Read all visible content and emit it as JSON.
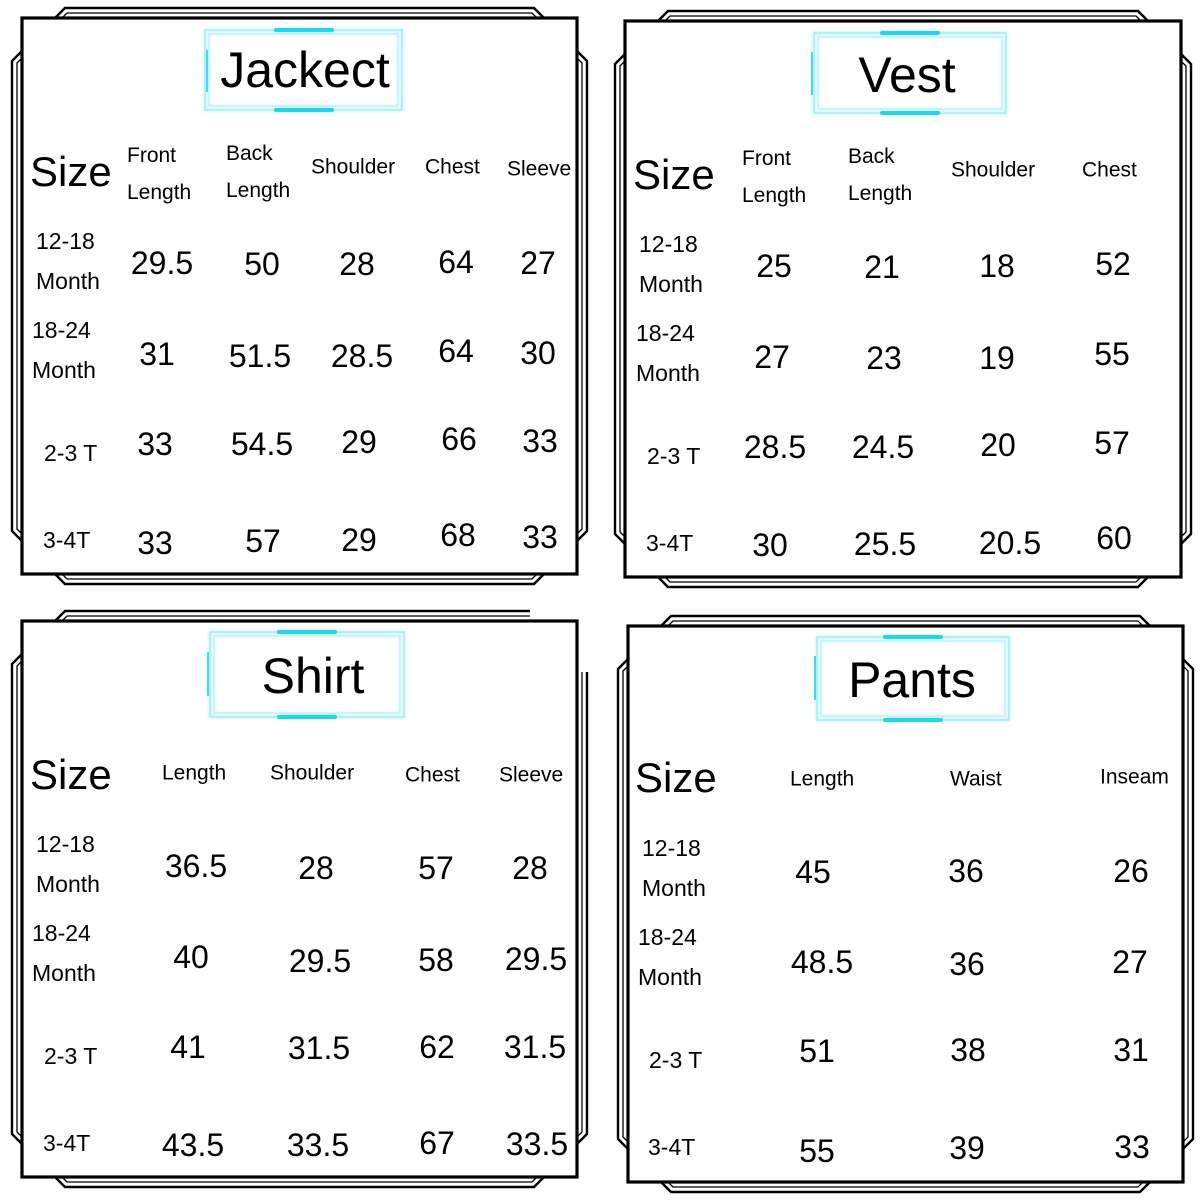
{
  "panels": [
    {
      "title": "Jackect",
      "size_label": "Size",
      "headers": [
        "Front\nLength",
        "Back\nLength",
        "Shoulder",
        "Chest",
        "Sleeve"
      ],
      "rows": [
        {
          "size": "12-18\nMonth",
          "values": [
            29.5,
            50,
            28,
            64,
            27
          ]
        },
        {
          "size": "18-24\nMonth",
          "values": [
            31,
            51.5,
            28.5,
            64,
            30
          ]
        },
        {
          "size": "2-3 T",
          "values": [
            33,
            54.5,
            29,
            66,
            33
          ]
        },
        {
          "size": "3-4T",
          "values": [
            33,
            57,
            29,
            68,
            33
          ]
        }
      ]
    },
    {
      "title": "Vest",
      "size_label": "Size",
      "headers": [
        "Front\nLength",
        "Back\nLength",
        "Shoulder",
        "Chest"
      ],
      "rows": [
        {
          "size": "12-18\nMonth",
          "values": [
            25,
            21,
            18,
            52
          ]
        },
        {
          "size": "18-24\nMonth",
          "values": [
            27,
            23,
            19,
            55
          ]
        },
        {
          "size": "2-3 T",
          "values": [
            28.5,
            24.5,
            20,
            57
          ]
        },
        {
          "size": "3-4T",
          "values": [
            30,
            25.5,
            20.5,
            60
          ]
        }
      ]
    },
    {
      "title": "Shirt",
      "size_label": "Size",
      "headers": [
        "Length",
        "Shoulder",
        "Chest",
        "Sleeve"
      ],
      "rows": [
        {
          "size": "12-18\nMonth",
          "values": [
            36.5,
            28,
            57,
            28
          ]
        },
        {
          "size": "18-24\nMonth",
          "values": [
            40,
            29.5,
            58,
            29.5
          ]
        },
        {
          "size": "2-3 T",
          "values": [
            41,
            31.5,
            62,
            31.5
          ]
        },
        {
          "size": "3-4T",
          "values": [
            43.5,
            33.5,
            67,
            33.5
          ]
        }
      ]
    },
    {
      "title": "Pants",
      "size_label": "Size",
      "headers": [
        "Length",
        "Waist",
        "Inseam"
      ],
      "rows": [
        {
          "size": "12-18\nMonth",
          "values": [
            45,
            36,
            26
          ]
        },
        {
          "size": "18-24\nMonth",
          "values": [
            48.5,
            36,
            27
          ]
        },
        {
          "size": "2-3 T",
          "values": [
            51,
            38,
            31
          ]
        },
        {
          "size": "3-4T",
          "values": [
            55,
            39,
            33
          ]
        }
      ]
    }
  ],
  "colors": {
    "background": "#ffffff",
    "frame": "#000000",
    "title_accent": "#28d3e6",
    "title_glow": "#aeeef6"
  }
}
